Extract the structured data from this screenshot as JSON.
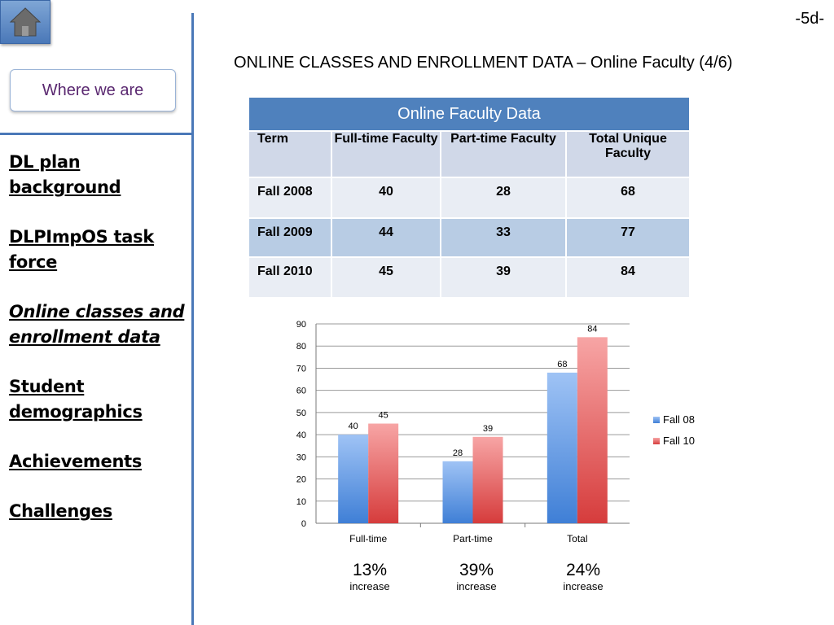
{
  "page_number": "-5d-",
  "title": "ONLINE CLASSES AND ENROLLMENT DATA – Online Faculty (4/6)",
  "sidebar": {
    "where_label": "Where we are",
    "items": [
      {
        "label": "DL plan background",
        "active": false
      },
      {
        "label": "DLPImpOS task force",
        "active": false
      },
      {
        "label": "Online classes and enrollment data",
        "active": true
      },
      {
        "label": "Student demographics",
        "active": false
      },
      {
        "label": "Achievements",
        "active": false
      },
      {
        "label": "Challenges",
        "active": false
      }
    ]
  },
  "table": {
    "title": "Online Faculty Data",
    "headers": [
      "Term",
      "Full-time Faculty",
      "Part-time Faculty",
      "Total Unique Faculty"
    ],
    "rows": [
      [
        "Fall 2008",
        "40",
        "28",
        "68"
      ],
      [
        "Fall 2009",
        "44",
        "33",
        "77"
      ],
      [
        "Fall 2010",
        "45",
        "39",
        "84"
      ]
    ]
  },
  "colors": {
    "accent": "#4f81bd",
    "fall08": "#4a84d6",
    "fall10": "#e04848"
  },
  "chart_data": {
    "type": "bar",
    "categories": [
      "Full-time",
      "Part-time",
      "Total"
    ],
    "series": [
      {
        "name": "Fall 08",
        "values": [
          40,
          28,
          68
        ]
      },
      {
        "name": "Fall 10",
        "values": [
          45,
          39,
          84
        ]
      }
    ],
    "ylim": [
      0,
      90
    ],
    "yticks": [
      0,
      10,
      20,
      30,
      40,
      50,
      60,
      70,
      80,
      90
    ],
    "grid": true,
    "legend": "right"
  },
  "increases": [
    {
      "pct": "13%",
      "word": "increase"
    },
    {
      "pct": "39%",
      "word": "increase"
    },
    {
      "pct": "24%",
      "word": "increase"
    }
  ]
}
